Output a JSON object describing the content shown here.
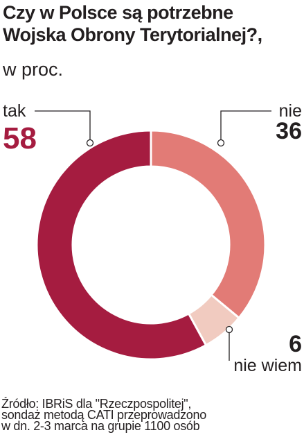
{
  "chart_data": {
    "type": "pie",
    "title_line1": "Czy w Polsce są potrzebne",
    "title_line2": "Wojska Obrony Terytorialnej?,",
    "subtitle": "w proc.",
    "slices": [
      {
        "label": "nie",
        "value": 36,
        "color": "#e27b76"
      },
      {
        "label": "nie wiem",
        "value": 6,
        "color": "#f1cbc0"
      },
      {
        "label": "tak",
        "value": 58,
        "color": "#a51c40"
      }
    ]
  },
  "source": {
    "line1": "Źródło: IBRiS dla \"Rzeczpospolitej\",",
    "line2": "sondaż metodą CATI przeprowadzono",
    "line3": "w dn. 2-3 marca na grupie 1100 osób"
  }
}
